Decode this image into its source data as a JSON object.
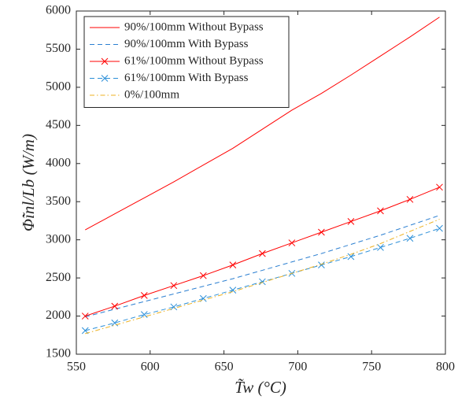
{
  "chart_data": {
    "type": "line",
    "xlabel": "T̃w (°C)",
    "ylabel": "Φ̃inl/Lb (W/m)",
    "x": [
      556,
      576,
      596,
      616,
      636,
      656,
      676,
      696,
      716,
      736,
      756,
      776,
      796
    ],
    "series": [
      {
        "name": "90%/100mm Without Bypass",
        "color": "#ff0000",
        "dash": "solid",
        "values": [
          3130,
          3340,
          3550,
          3760,
          3980,
          4200,
          4450,
          4700,
          4920,
          5160,
          5410,
          5660,
          5920
        ]
      },
      {
        "name": "90%/100mm With Bypass",
        "color": "#2b7fd1",
        "dash": "dashed",
        "values": [
          1990,
          2090,
          2190,
          2290,
          2390,
          2490,
          2600,
          2710,
          2820,
          2940,
          3060,
          3190,
          3320
        ]
      },
      {
        "name": "61%/100mm Without Bypass",
        "color": "#ff0000",
        "dash": "solid",
        "marker": "x",
        "values": [
          2000,
          2130,
          2270,
          2400,
          2530,
          2670,
          2820,
          2960,
          3100,
          3240,
          3380,
          3530,
          3690
        ]
      },
      {
        "name": "61%/100mm With Bypass",
        "color": "#2b8fd8",
        "dash": "dashed",
        "marker": "x",
        "values": [
          1810,
          1910,
          2020,
          2120,
          2230,
          2340,
          2450,
          2560,
          2670,
          2780,
          2900,
          3020,
          3150
        ]
      },
      {
        "name": "0%/100mm",
        "color": "#edb120",
        "dash": "dashdot",
        "values": [
          1770,
          1880,
          1990,
          2100,
          2210,
          2320,
          2440,
          2560,
          2680,
          2810,
          2950,
          3110,
          3270
        ]
      }
    ],
    "xlim": [
      550,
      800
    ],
    "xticks": [
      550,
      600,
      650,
      700,
      750,
      800
    ],
    "ylim": [
      1500,
      6000
    ],
    "yticks": [
      1500,
      2000,
      2500,
      3000,
      3500,
      4000,
      4500,
      5000,
      5500,
      6000
    ],
    "legend": "top-left"
  }
}
